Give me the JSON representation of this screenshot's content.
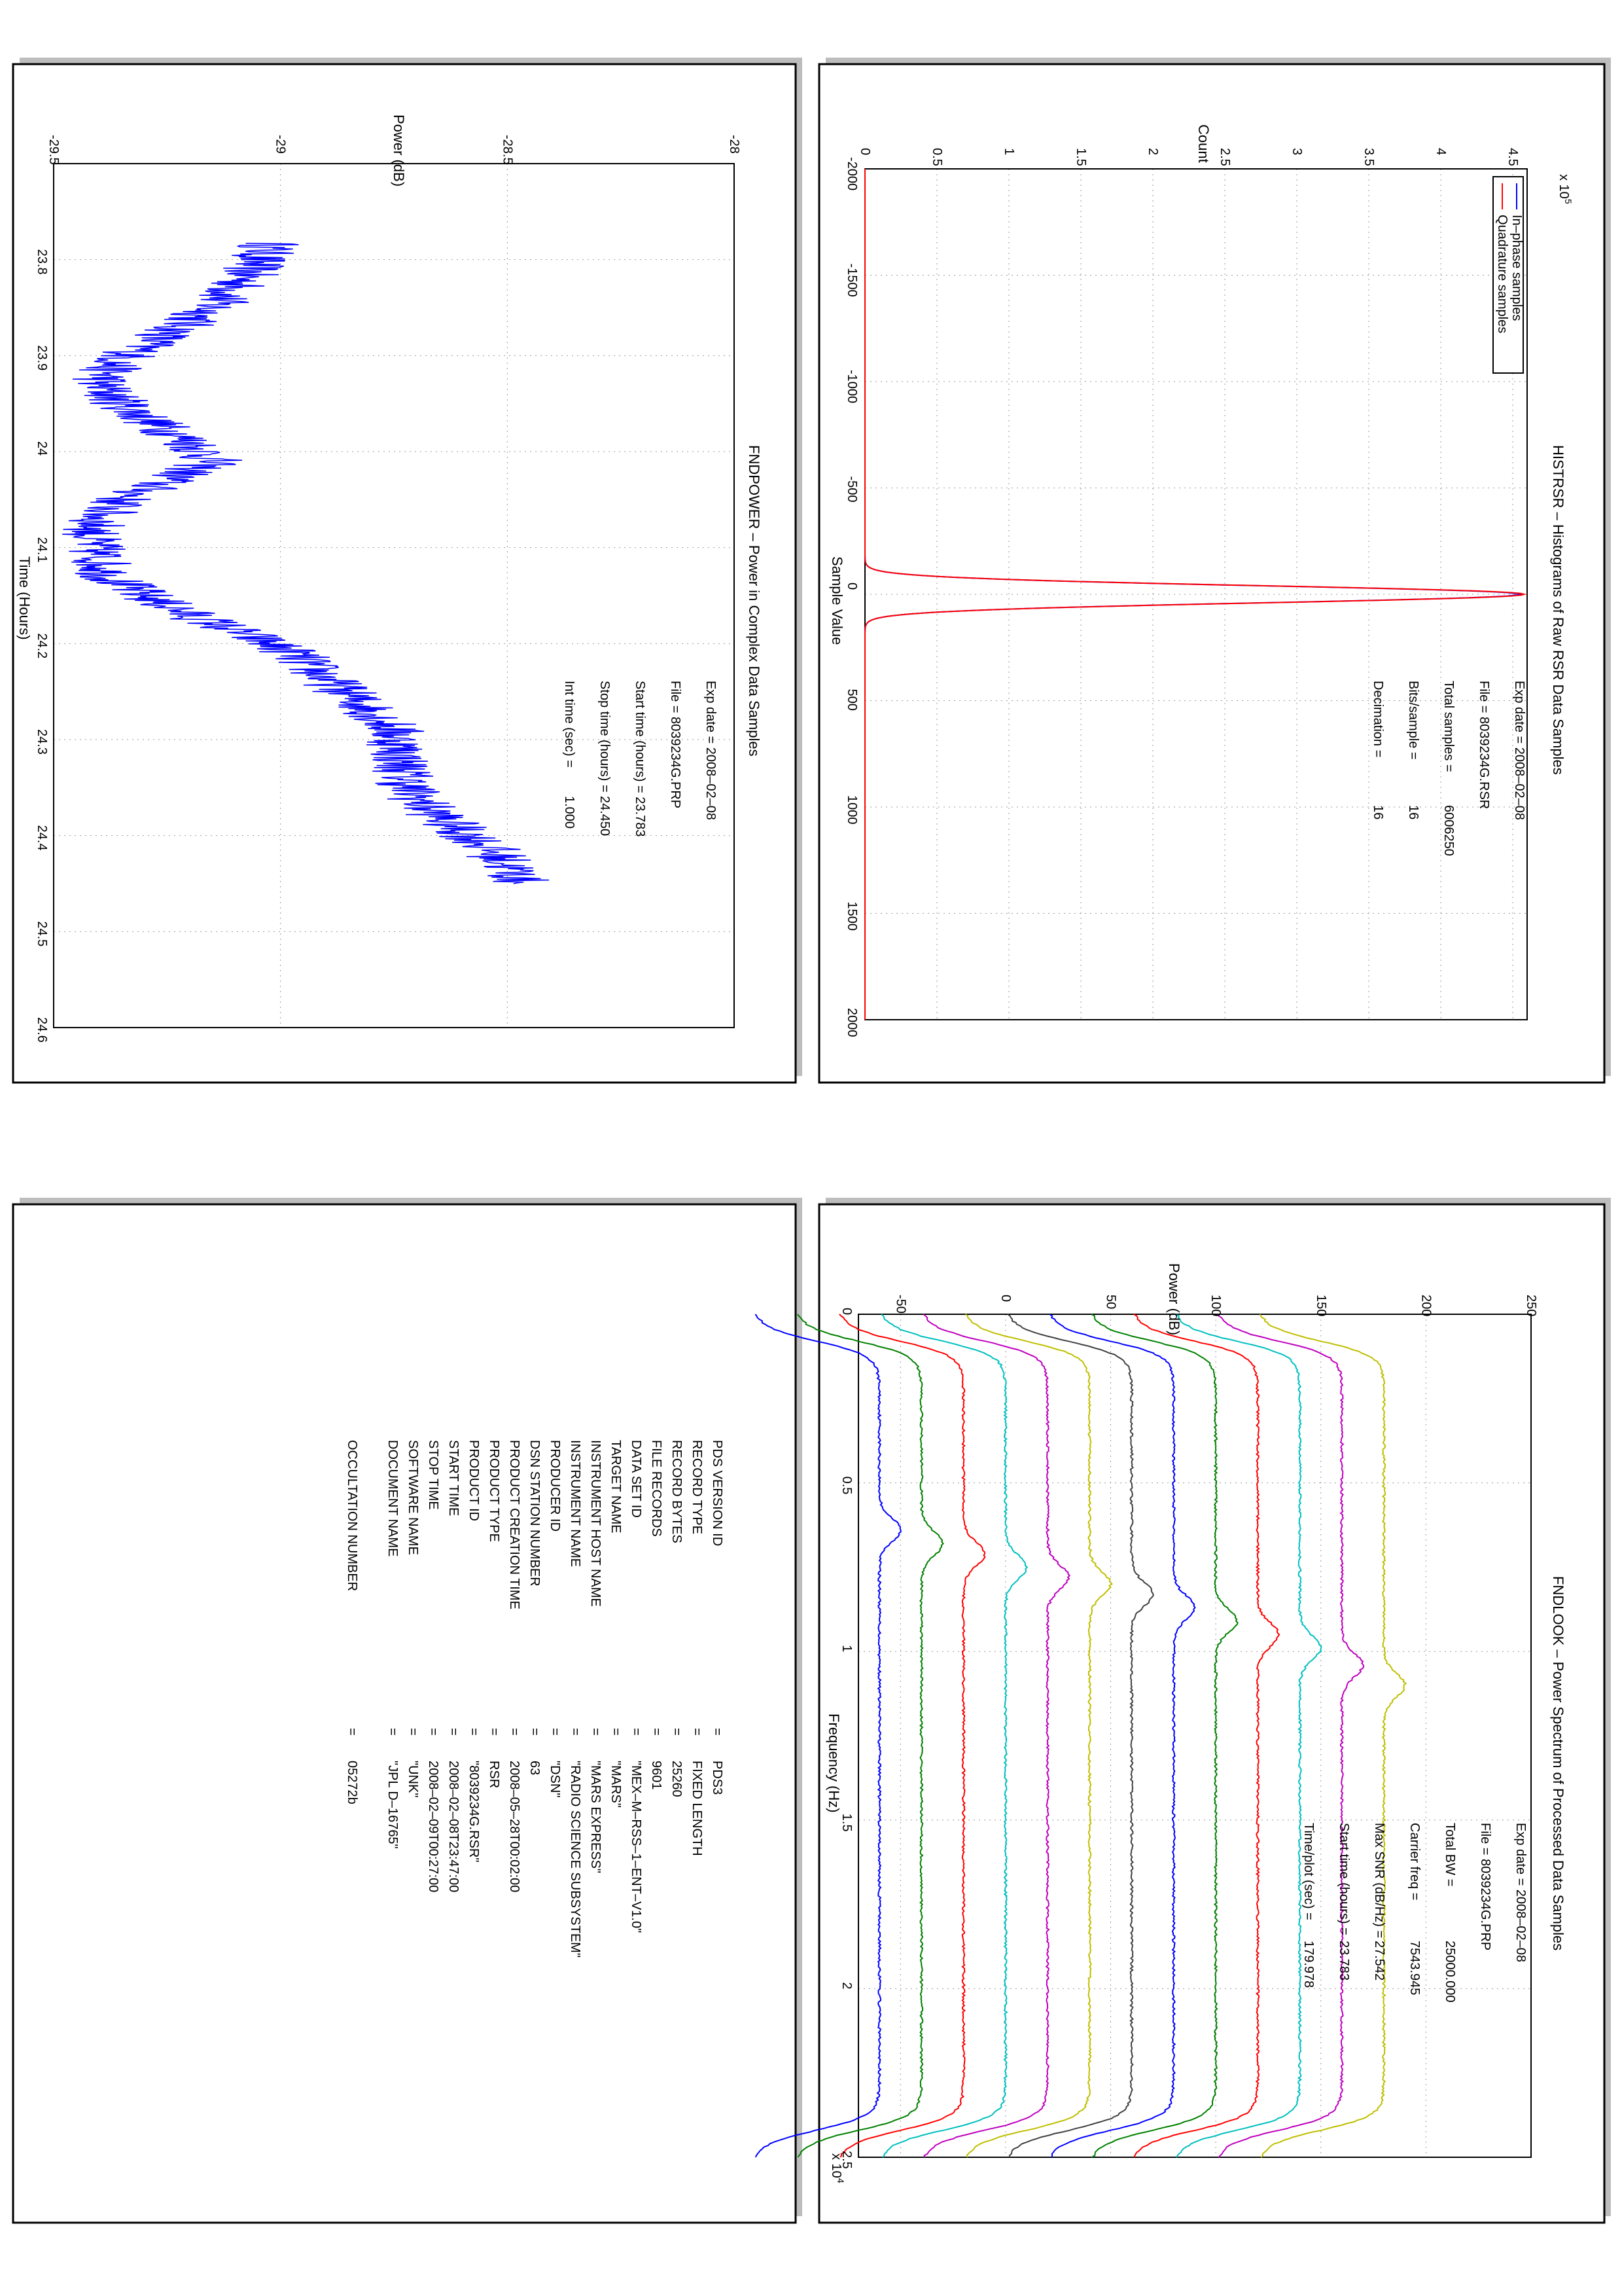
{
  "histrsr": {
    "title": "HISTRSR – Histograms of Raw RSR Data Samples",
    "xlabel": "Sample Value",
    "ylabel": "Count",
    "exponent": "x 10",
    "exponent_power": "5",
    "legend": [
      "In–phase samples",
      "Quadrature samples"
    ],
    "info": [
      {
        "label": "Exp date = 2008–02–08",
        "value": ""
      },
      {
        "label": "File = 8039234G.RSR",
        "value": ""
      },
      {
        "label": "Total samples =",
        "value": "6006250"
      },
      {
        "label": "Bits/sample   =",
        "value": "16"
      },
      {
        "label": "Decimation   =",
        "value": "16"
      }
    ]
  },
  "fndpower": {
    "title": "FNDPOWER – Power in Complex Data Samples",
    "xlabel": "Time (Hours)",
    "ylabel": "Power (dB)",
    "info": [
      {
        "label": "Exp date = 2008–02–08",
        "value": ""
      },
      {
        "label": "File = 8039234G.PRP",
        "value": ""
      },
      {
        "label": "Start time (hours) = 23.783",
        "value": ""
      },
      {
        "label": "Stop time (hours) =",
        "value": "24.450"
      },
      {
        "label": "Int time (sec) =",
        "value": "1.000"
      }
    ]
  },
  "fndlook": {
    "title": "FNDLOOK – Power Spectrum of Processed Data Samples",
    "xlabel": "Frequency (Hz)",
    "ylabel": "Power (dB)",
    "exponent": "x 10",
    "exponent_power": "4",
    "info": [
      {
        "label": "Exp date = 2008–02–08",
        "value": ""
      },
      {
        "label": "File = 8039234G.PRP",
        "value": ""
      },
      {
        "label": "Total BW =",
        "value": "25000.000"
      },
      {
        "label": "Carrier freq =",
        "value": "7543.945"
      },
      {
        "label": "Max SNR (dB/Hz) =",
        "value": "27.542"
      },
      {
        "label": "Start time (hours) =",
        "value": "23.783"
      },
      {
        "label": "Time/plot (sec) =",
        "value": "179.978"
      }
    ]
  },
  "label_table": {
    "rows": [
      {
        "key": "PDS VERSION ID",
        "eq": "=",
        "value": "PDS3"
      },
      {
        "key": "RECORD TYPE",
        "eq": "=",
        "value": "FIXED LENGTH"
      },
      {
        "key": "RECORD BYTES",
        "eq": "=",
        "value": "25260"
      },
      {
        "key": "FILE RECORDS",
        "eq": "=",
        "value": "9601"
      },
      {
        "key": "DATA SET ID",
        "eq": "=",
        "value": "\"MEX–M–RSS–1–ENT–V1.0\""
      },
      {
        "key": "TARGET NAME",
        "eq": "=",
        "value": "\"MARS\""
      },
      {
        "key": "INSTRUMENT HOST NAME",
        "eq": "=",
        "value": "\"MARS EXPRESS\""
      },
      {
        "key": "INSTRUMENT NAME",
        "eq": "=",
        "value": "\"RADIO SCIENCE SUBSYSTEM\""
      },
      {
        "key": "PRODUCER ID",
        "eq": "=",
        "value": "\"DSN\""
      },
      {
        "key": "DSN STATION NUMBER",
        "eq": "=",
        "value": "63"
      },
      {
        "key": "PRODUCT CREATION TIME",
        "eq": "=",
        "value": "2008–05–28T00:02:00"
      },
      {
        "key": "PRODUCT TYPE",
        "eq": "=",
        "value": "RSR"
      },
      {
        "key": "PRODUCT ID",
        "eq": "=",
        "value": "\"8039234G.RSR\""
      },
      {
        "key": "START TIME",
        "eq": "=",
        "value": "2008–02–08T23:47:00"
      },
      {
        "key": "STOP TIME",
        "eq": "=",
        "value": "2008–02–09T00:27:00"
      },
      {
        "key": "SOFTWARE NAME",
        "eq": "=",
        "value": "\"UNK\""
      },
      {
        "key": "DOCUMENT NAME",
        "eq": "=",
        "value": "\"JPL D–16765\""
      },
      {
        "key": "",
        "eq": "",
        "value": ""
      },
      {
        "key": "OCCULTATION NUMBER",
        "eq": "=",
        "value": "05272b"
      }
    ]
  },
  "chart_data": [
    {
      "type": "line",
      "title": "HISTRSR – Histograms of Raw RSR Data Samples",
      "xlabel": "Sample Value",
      "ylabel": "Count",
      "xlim": [
        -2000,
        2000
      ],
      "ylim": [
        0,
        460000
      ],
      "xticks": [
        "-2000",
        "-1500",
        "-1000",
        "-500",
        "0",
        "500",
        "1000",
        "1500",
        "2000"
      ],
      "yticks": [
        "0",
        "0.5",
        "1",
        "1.5",
        "2",
        "2.5",
        "3",
        "3.5",
        "4",
        "4.5"
      ],
      "grid": true,
      "legend_position": "top-left",
      "series": [
        {
          "name": "In–phase samples",
          "color": "#0000ff",
          "peak_x": 0,
          "peak_y": 455000,
          "sigma": 40
        },
        {
          "name": "Quadrature samples",
          "color": "#ff0000",
          "peak_x": 0,
          "peak_y": 458000,
          "sigma": 40
        }
      ]
    },
    {
      "type": "line",
      "title": "FNDPOWER – Power in Complex Data Samples",
      "xlabel": "Time (Hours)",
      "ylabel": "Power (dB)",
      "xlim": [
        23.7,
        24.6
      ],
      "ylim": [
        -29.5,
        -28
      ],
      "xticks": [
        "23.8",
        "23.9",
        "24",
        "24.1",
        "24.2",
        "24.3",
        "24.4",
        "24.5",
        "24.6"
      ],
      "yticks": [
        "-29.5",
        "-29",
        "-28.5",
        "-28"
      ],
      "grid": true,
      "series": [
        {
          "color": "#0000ff",
          "x": [
            23.783,
            23.8,
            23.82,
            23.85,
            23.87,
            23.89,
            23.91,
            23.93,
            23.95,
            23.97,
            23.99,
            24.01,
            24.03,
            24.05,
            24.07,
            24.09,
            24.11,
            24.13,
            24.15,
            24.17,
            24.19,
            24.21,
            24.23,
            24.25,
            24.27,
            24.29,
            24.31,
            24.33,
            24.35,
            24.37,
            24.39,
            24.41,
            24.43,
            24.45
          ],
          "y": [
            -29.02,
            -29.05,
            -29.08,
            -29.15,
            -29.22,
            -29.3,
            -29.37,
            -29.4,
            -29.35,
            -29.28,
            -29.2,
            -29.15,
            -29.25,
            -29.35,
            -29.4,
            -29.42,
            -29.4,
            -29.38,
            -29.3,
            -29.2,
            -29.08,
            -28.97,
            -28.92,
            -28.86,
            -28.8,
            -28.75,
            -28.74,
            -28.73,
            -28.72,
            -28.68,
            -28.62,
            -28.55,
            -28.5,
            -28.47
          ]
        }
      ]
    },
    {
      "type": "line",
      "title": "FNDLOOK – Power Spectrum of Processed Data Samples",
      "xlabel": "Frequency (Hz)",
      "ylabel": "Power (dB)",
      "xlim": [
        0,
        25000
      ],
      "ylim": [
        -70,
        250
      ],
      "xticks": [
        "0",
        "0.5",
        "1",
        "1.5",
        "2",
        "2.5"
      ],
      "yticks": [
        "-50",
        "0",
        "50",
        "100",
        "150",
        "200",
        "250"
      ],
      "grid": true,
      "series": [
        {
          "color": "#0000ff",
          "offset": -60,
          "peak_x": 6400
        },
        {
          "color": "#008000",
          "offset": -40,
          "peak_x": 6800
        },
        {
          "color": "#ff0000",
          "offset": -20,
          "peak_x": 7100
        },
        {
          "color": "#00bfbf",
          "offset": 0,
          "peak_x": 7500
        },
        {
          "color": "#bf00bf",
          "offset": 20,
          "peak_x": 7800
        },
        {
          "color": "#bfbf00",
          "offset": 40,
          "peak_x": 8000
        },
        {
          "color": "#404040",
          "offset": 60,
          "peak_x": 8300
        },
        {
          "color": "#0000ff",
          "offset": 80,
          "peak_x": 8700
        },
        {
          "color": "#008000",
          "offset": 100,
          "peak_x": 9100
        },
        {
          "color": "#ff0000",
          "offset": 120,
          "peak_x": 9500
        },
        {
          "color": "#00bfbf",
          "offset": 140,
          "peak_x": 9900
        },
        {
          "color": "#bf00bf",
          "offset": 160,
          "peak_x": 10400
        },
        {
          "color": "#bfbf00",
          "offset": 180,
          "peak_x": 11000
        }
      ]
    }
  ]
}
